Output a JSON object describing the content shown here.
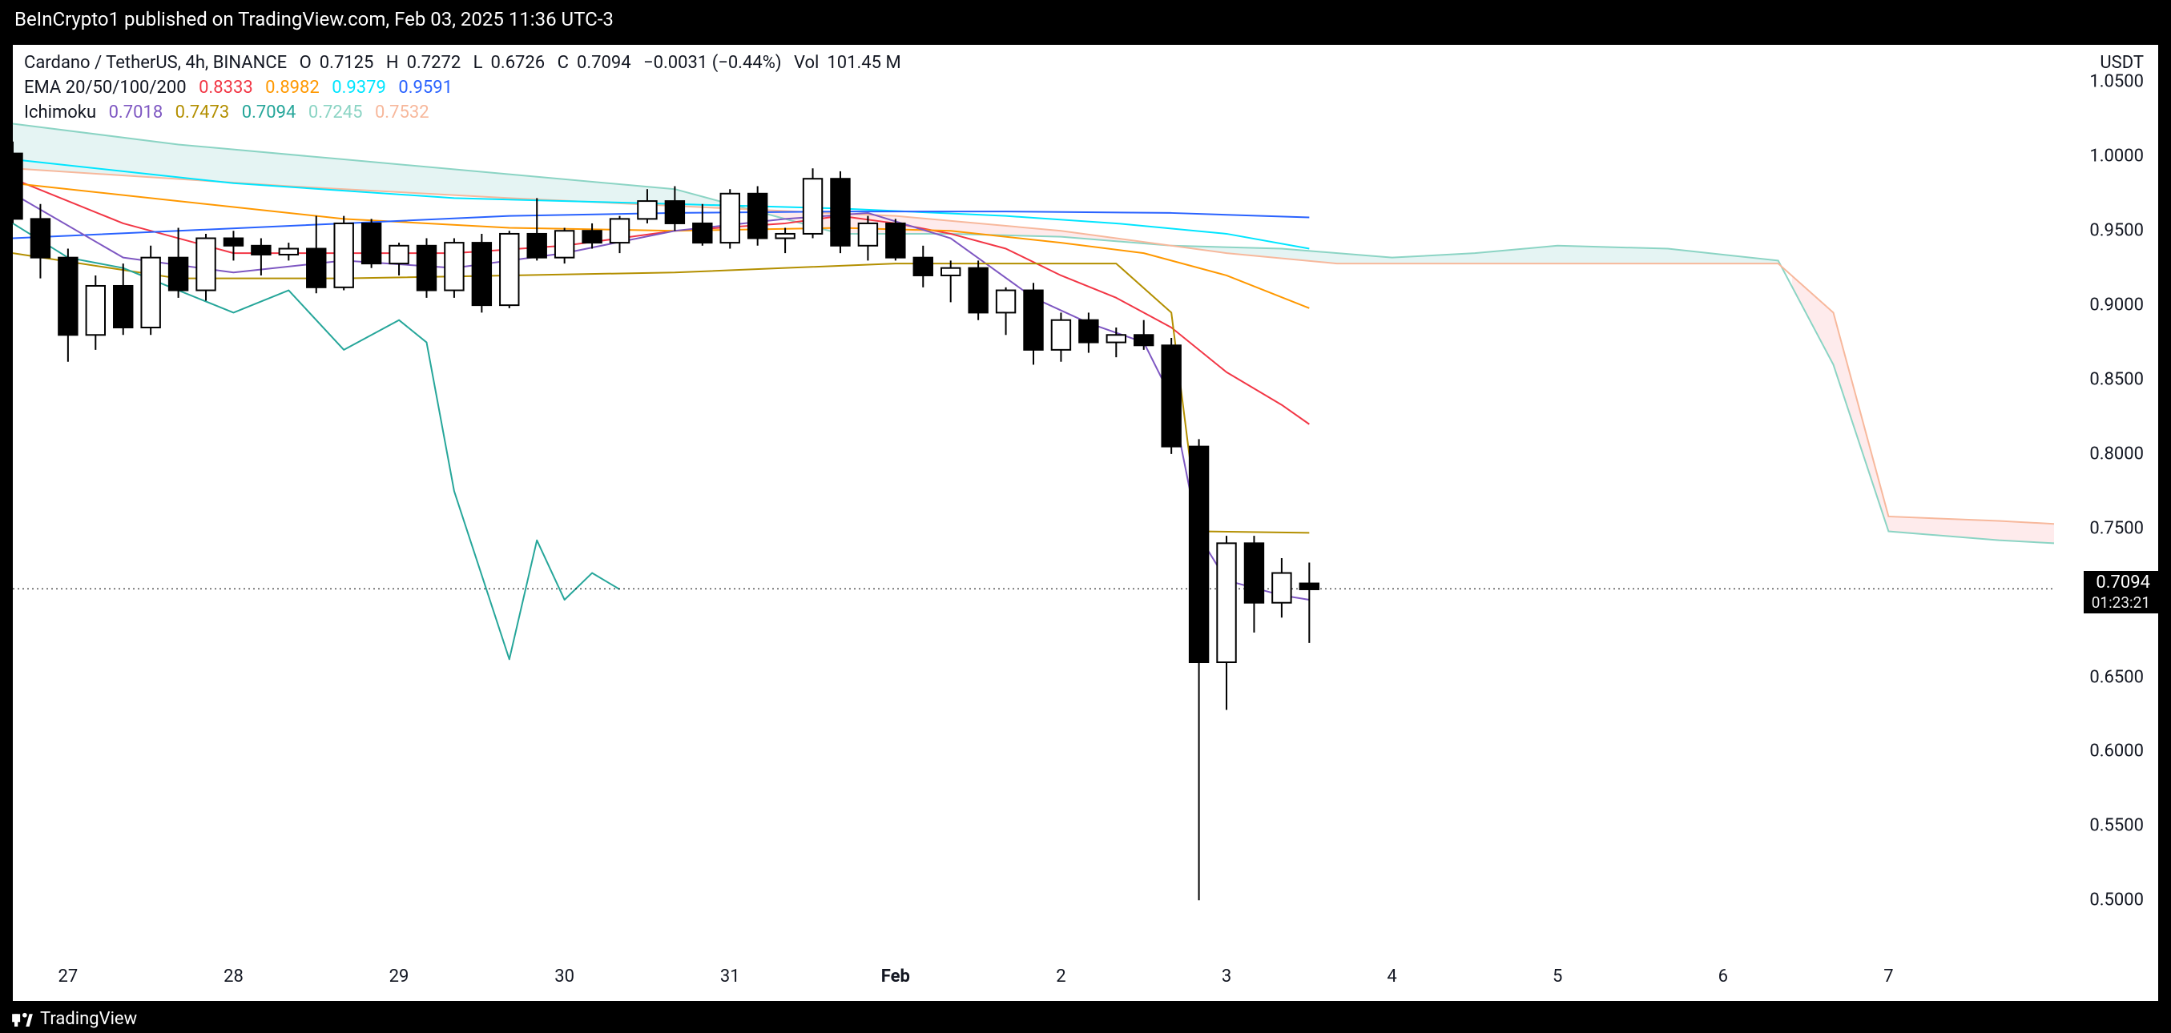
{
  "header": {
    "text": "BeInCrypto1 published on TradingView.com, Feb 03, 2025 11:36 UTC-3"
  },
  "footer": {
    "brand": "TradingView"
  },
  "legend": {
    "symbol": "Cardano / TetherUS, 4h, BINANCE",
    "ohlc": {
      "O": "0.7125",
      "H": "0.7272",
      "L": "0.6726",
      "C": "0.7094",
      "chg": "−0.0031 (−0.44%)",
      "vol": "101.45 M",
      "color_delta": "#000000"
    },
    "ema": {
      "label": "EMA 20/50/100/200",
      "v20": {
        "text": "0.8333",
        "color": "#f23645"
      },
      "v50": {
        "text": "0.8982",
        "color": "#ff9800"
      },
      "v100": {
        "text": "0.9379",
        "color": "#00e5ff"
      },
      "v200": {
        "text": "0.9591",
        "color": "#2962ff"
      }
    },
    "ichimoku": {
      "label": "Ichimoku",
      "v1": {
        "text": "0.7018",
        "color": "#7e57c2"
      },
      "v2": {
        "text": "0.7473",
        "color": "#b38f00"
      },
      "v3": {
        "text": "0.7094",
        "color": "#26a69a"
      },
      "v4": {
        "text": "0.7245",
        "color": "#8bd4c4"
      },
      "v5": {
        "text": "0.7532",
        "color": "#f7b89c"
      }
    }
  },
  "yaxis": {
    "currency": "USDT",
    "min": 0.47,
    "max": 1.075,
    "ticks": [
      0.5,
      0.55,
      0.6,
      0.65,
      0.7,
      0.75,
      0.8,
      0.85,
      0.9,
      0.95,
      1.0,
      1.05
    ],
    "price_tag": {
      "price": "0.7094",
      "countdown": "01:23:21",
      "y": 0.7094
    },
    "grid_color": "#ffffff"
  },
  "xaxis": {
    "min": 0,
    "max": 74,
    "ticks": [
      {
        "i": 2,
        "label": "27"
      },
      {
        "i": 8,
        "label": "28"
      },
      {
        "i": 14,
        "label": "29"
      },
      {
        "i": 20,
        "label": "30"
      },
      {
        "i": 26,
        "label": "31"
      },
      {
        "i": 32,
        "label": "Feb",
        "bold": true
      },
      {
        "i": 38,
        "label": "2"
      },
      {
        "i": 44,
        "label": "3"
      },
      {
        "i": 50,
        "label": "4"
      },
      {
        "i": 56,
        "label": "5"
      },
      {
        "i": 62,
        "label": "6"
      },
      {
        "i": 68,
        "label": "7"
      }
    ]
  },
  "chart": {
    "type": "candlestick",
    "bar_width": 0.68,
    "candle_border": "#000000",
    "candle_up_fill": "#ffffff",
    "candle_down_fill": "#000000",
    "wick_color": "#000000",
    "price_line_color": "#000000",
    "cloud_up_fill": "rgba(38,166,154,0.12)",
    "cloud_down_fill": "rgba(242,54,69,0.10)",
    "candles": [
      {
        "i": 0,
        "o": 1.002,
        "h": 1.01,
        "l": 0.955,
        "c": 0.958
      },
      {
        "i": 1,
        "o": 0.958,
        "h": 0.968,
        "l": 0.918,
        "c": 0.932
      },
      {
        "i": 2,
        "o": 0.932,
        "h": 0.938,
        "l": 0.862,
        "c": 0.88
      },
      {
        "i": 3,
        "o": 0.88,
        "h": 0.92,
        "l": 0.87,
        "c": 0.913
      },
      {
        "i": 4,
        "o": 0.913,
        "h": 0.928,
        "l": 0.88,
        "c": 0.885
      },
      {
        "i": 5,
        "o": 0.885,
        "h": 0.94,
        "l": 0.88,
        "c": 0.932
      },
      {
        "i": 6,
        "o": 0.932,
        "h": 0.952,
        "l": 0.905,
        "c": 0.91
      },
      {
        "i": 7,
        "o": 0.91,
        "h": 0.948,
        "l": 0.903,
        "c": 0.945
      },
      {
        "i": 8,
        "o": 0.945,
        "h": 0.95,
        "l": 0.93,
        "c": 0.94
      },
      {
        "i": 9,
        "o": 0.94,
        "h": 0.945,
        "l": 0.92,
        "c": 0.934
      },
      {
        "i": 10,
        "o": 0.934,
        "h": 0.942,
        "l": 0.93,
        "c": 0.938
      },
      {
        "i": 11,
        "o": 0.938,
        "h": 0.96,
        "l": 0.908,
        "c": 0.912
      },
      {
        "i": 12,
        "o": 0.912,
        "h": 0.96,
        "l": 0.91,
        "c": 0.955
      },
      {
        "i": 13,
        "o": 0.955,
        "h": 0.958,
        "l": 0.925,
        "c": 0.928
      },
      {
        "i": 14,
        "o": 0.928,
        "h": 0.942,
        "l": 0.92,
        "c": 0.94
      },
      {
        "i": 15,
        "o": 0.94,
        "h": 0.945,
        "l": 0.905,
        "c": 0.91
      },
      {
        "i": 16,
        "o": 0.91,
        "h": 0.945,
        "l": 0.905,
        "c": 0.942
      },
      {
        "i": 17,
        "o": 0.942,
        "h": 0.948,
        "l": 0.895,
        "c": 0.9
      },
      {
        "i": 18,
        "o": 0.9,
        "h": 0.95,
        "l": 0.898,
        "c": 0.948
      },
      {
        "i": 19,
        "o": 0.948,
        "h": 0.972,
        "l": 0.93,
        "c": 0.932
      },
      {
        "i": 20,
        "o": 0.932,
        "h": 0.952,
        "l": 0.928,
        "c": 0.95
      },
      {
        "i": 21,
        "o": 0.95,
        "h": 0.955,
        "l": 0.938,
        "c": 0.942
      },
      {
        "i": 22,
        "o": 0.942,
        "h": 0.96,
        "l": 0.935,
        "c": 0.958
      },
      {
        "i": 23,
        "o": 0.958,
        "h": 0.978,
        "l": 0.955,
        "c": 0.97
      },
      {
        "i": 24,
        "o": 0.97,
        "h": 0.98,
        "l": 0.95,
        "c": 0.955
      },
      {
        "i": 25,
        "o": 0.955,
        "h": 0.968,
        "l": 0.94,
        "c": 0.942
      },
      {
        "i": 26,
        "o": 0.942,
        "h": 0.978,
        "l": 0.938,
        "c": 0.975
      },
      {
        "i": 27,
        "o": 0.975,
        "h": 0.98,
        "l": 0.94,
        "c": 0.945
      },
      {
        "i": 28,
        "o": 0.945,
        "h": 0.952,
        "l": 0.935,
        "c": 0.948
      },
      {
        "i": 29,
        "o": 0.948,
        "h": 0.992,
        "l": 0.945,
        "c": 0.985
      },
      {
        "i": 30,
        "o": 0.985,
        "h": 0.99,
        "l": 0.935,
        "c": 0.94
      },
      {
        "i": 31,
        "o": 0.94,
        "h": 0.96,
        "l": 0.93,
        "c": 0.955
      },
      {
        "i": 32,
        "o": 0.955,
        "h": 0.958,
        "l": 0.93,
        "c": 0.932
      },
      {
        "i": 33,
        "o": 0.932,
        "h": 0.94,
        "l": 0.912,
        "c": 0.92
      },
      {
        "i": 34,
        "o": 0.92,
        "h": 0.93,
        "l": 0.902,
        "c": 0.925
      },
      {
        "i": 35,
        "o": 0.925,
        "h": 0.93,
        "l": 0.89,
        "c": 0.895
      },
      {
        "i": 36,
        "o": 0.895,
        "h": 0.912,
        "l": 0.88,
        "c": 0.91
      },
      {
        "i": 37,
        "o": 0.91,
        "h": 0.915,
        "l": 0.86,
        "c": 0.87
      },
      {
        "i": 38,
        "o": 0.87,
        "h": 0.895,
        "l": 0.862,
        "c": 0.89
      },
      {
        "i": 39,
        "o": 0.89,
        "h": 0.895,
        "l": 0.868,
        "c": 0.875
      },
      {
        "i": 40,
        "o": 0.875,
        "h": 0.885,
        "l": 0.865,
        "c": 0.88
      },
      {
        "i": 41,
        "o": 0.88,
        "h": 0.89,
        "l": 0.87,
        "c": 0.873
      },
      {
        "i": 42,
        "o": 0.873,
        "h": 0.878,
        "l": 0.8,
        "c": 0.805
      },
      {
        "i": 43,
        "o": 0.805,
        "h": 0.81,
        "l": 0.5,
        "c": 0.66
      },
      {
        "i": 44,
        "o": 0.66,
        "h": 0.745,
        "l": 0.628,
        "c": 0.74
      },
      {
        "i": 45,
        "o": 0.74,
        "h": 0.745,
        "l": 0.68,
        "c": 0.7
      },
      {
        "i": 46,
        "o": 0.7,
        "h": 0.73,
        "l": 0.69,
        "c": 0.72
      },
      {
        "i": 47,
        "o": 0.713,
        "h": 0.727,
        "l": 0.673,
        "c": 0.709
      }
    ],
    "lines": {
      "ema20": {
        "color": "#f23645",
        "w": 2,
        "pts": [
          [
            0,
            0.985
          ],
          [
            4,
            0.955
          ],
          [
            8,
            0.935
          ],
          [
            12,
            0.935
          ],
          [
            16,
            0.935
          ],
          [
            20,
            0.94
          ],
          [
            24,
            0.95
          ],
          [
            28,
            0.955
          ],
          [
            30,
            0.96
          ],
          [
            32,
            0.955
          ],
          [
            34,
            0.948
          ],
          [
            36,
            0.938
          ],
          [
            38,
            0.92
          ],
          [
            40,
            0.905
          ],
          [
            42,
            0.885
          ],
          [
            44,
            0.855
          ],
          [
            46,
            0.833
          ],
          [
            47,
            0.82
          ]
        ]
      },
      "ema50": {
        "color": "#ff9800",
        "w": 2,
        "pts": [
          [
            0,
            0.982
          ],
          [
            6,
            0.97
          ],
          [
            12,
            0.958
          ],
          [
            18,
            0.952
          ],
          [
            24,
            0.95
          ],
          [
            30,
            0.952
          ],
          [
            34,
            0.95
          ],
          [
            38,
            0.942
          ],
          [
            41,
            0.935
          ],
          [
            44,
            0.92
          ],
          [
            47,
            0.898
          ]
        ]
      },
      "ema100": {
        "color": "#00e5ff",
        "w": 2,
        "pts": [
          [
            0,
            0.998
          ],
          [
            8,
            0.982
          ],
          [
            16,
            0.972
          ],
          [
            24,
            0.968
          ],
          [
            30,
            0.965
          ],
          [
            36,
            0.96
          ],
          [
            40,
            0.955
          ],
          [
            44,
            0.948
          ],
          [
            47,
            0.938
          ]
        ]
      },
      "ema200": {
        "color": "#2962ff",
        "w": 2,
        "pts": [
          [
            0,
            0.945
          ],
          [
            6,
            0.95
          ],
          [
            12,
            0.955
          ],
          [
            18,
            0.96
          ],
          [
            24,
            0.962
          ],
          [
            30,
            0.963
          ],
          [
            36,
            0.963
          ],
          [
            42,
            0.962
          ],
          [
            47,
            0.959
          ]
        ]
      },
      "tenkan": {
        "color": "#7e57c2",
        "w": 2,
        "pts": [
          [
            0,
            0.975
          ],
          [
            4,
            0.932
          ],
          [
            8,
            0.922
          ],
          [
            12,
            0.93
          ],
          [
            16,
            0.925
          ],
          [
            20,
            0.935
          ],
          [
            24,
            0.95
          ],
          [
            28,
            0.958
          ],
          [
            31,
            0.962
          ],
          [
            34,
            0.945
          ],
          [
            37,
            0.905
          ],
          [
            39,
            0.888
          ],
          [
            41,
            0.875
          ],
          [
            42,
            0.838
          ],
          [
            43,
            0.745
          ],
          [
            44,
            0.715
          ],
          [
            46,
            0.705
          ],
          [
            47,
            0.702
          ]
        ]
      },
      "kijun": {
        "color": "#b38f00",
        "w": 2,
        "pts": [
          [
            0,
            0.935
          ],
          [
            6,
            0.918
          ],
          [
            12,
            0.918
          ],
          [
            18,
            0.92
          ],
          [
            24,
            0.922
          ],
          [
            28,
            0.925
          ],
          [
            32,
            0.928
          ],
          [
            36,
            0.928
          ],
          [
            40,
            0.928
          ],
          [
            42,
            0.895
          ],
          [
            43,
            0.748
          ],
          [
            47,
            0.747
          ]
        ]
      },
      "chikou": {
        "color": "#26a69a",
        "w": 2,
        "pts": [
          [
            0,
            0.955
          ],
          [
            2,
            0.932
          ],
          [
            4,
            0.925
          ],
          [
            6,
            0.91
          ],
          [
            8,
            0.895
          ],
          [
            10,
            0.91
          ],
          [
            12,
            0.87
          ],
          [
            14,
            0.89
          ],
          [
            15,
            0.875
          ],
          [
            16,
            0.775
          ],
          [
            18,
            0.662
          ],
          [
            19,
            0.742
          ],
          [
            20,
            0.702
          ],
          [
            21,
            0.72
          ],
          [
            22,
            0.709
          ]
        ]
      }
    },
    "cloud": {
      "spanA": [
        [
          0,
          1.022
        ],
        [
          6,
          1.008
        ],
        [
          12,
          0.998
        ],
        [
          18,
          0.988
        ],
        [
          24,
          0.978
        ],
        [
          28,
          0.958
        ],
        [
          30,
          0.948
        ],
        [
          34,
          0.948
        ],
        [
          38,
          0.946
        ],
        [
          42,
          0.94
        ],
        [
          46,
          0.938
        ],
        [
          50,
          0.932
        ],
        [
          53,
          0.935
        ],
        [
          56,
          0.94
        ],
        [
          60,
          0.938
        ],
        [
          64,
          0.93
        ],
        [
          66,
          0.86
        ],
        [
          68,
          0.748
        ],
        [
          72,
          0.742
        ],
        [
          74,
          0.74
        ]
      ],
      "spanB": [
        [
          0,
          0.992
        ],
        [
          10,
          0.98
        ],
        [
          18,
          0.972
        ],
        [
          26,
          0.965
        ],
        [
          32,
          0.96
        ],
        [
          38,
          0.95
        ],
        [
          44,
          0.935
        ],
        [
          48,
          0.928
        ],
        [
          52,
          0.928
        ],
        [
          56,
          0.928
        ],
        [
          60,
          0.928
        ],
        [
          64,
          0.928
        ],
        [
          66,
          0.895
        ],
        [
          68,
          0.758
        ],
        [
          72,
          0.755
        ],
        [
          74,
          0.753
        ]
      ]
    }
  }
}
